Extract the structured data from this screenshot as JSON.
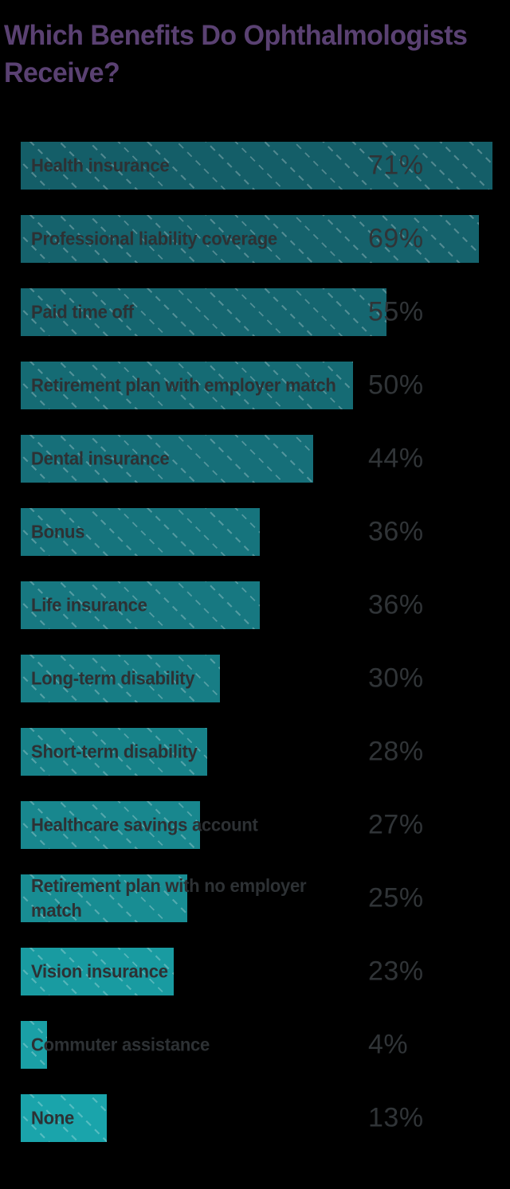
{
  "header": {
    "title_display": "Which Benefits Do Ophthalmologists\nReceive?"
  },
  "colors": {
    "background": "#000000",
    "title": "#5a4172",
    "label_text": "#2d3134",
    "value_text": "#303437",
    "pattern_line": "rgba(255,255,255,0.26)"
  },
  "chart_data": {
    "type": "bar",
    "orientation": "horizontal",
    "title": "Which Benefits Do Ophthalmologists Receive?",
    "xlabel": "",
    "ylabel": "",
    "xlim": [
      0,
      74
    ],
    "grid": false,
    "legend": false,
    "value_suffix": "%",
    "categories": [
      "Health insurance",
      "Professional liability coverage",
      "Paid time off",
      "Retirement plan with employer match",
      "Dental insurance",
      "Bonus",
      "Life insurance",
      "Long-term disability",
      "Short-term disability",
      "Healthcare savings account",
      "Retirement plan with no employer\nmatch",
      "Vision insurance",
      "Commuter assistance",
      "None"
    ],
    "values": [
      71,
      69,
      55,
      50,
      44,
      36,
      36,
      30,
      28,
      27,
      25,
      23,
      4,
      13
    ],
    "value_labels": [
      "71%",
      "69%",
      "55%",
      "50%",
      "44%",
      "36%",
      "36%",
      "30%",
      "28%",
      "27%",
      "25%",
      "23%",
      "4%",
      "13%"
    ],
    "bar_colors": [
      "#145e68",
      "#15626c",
      "#156670",
      "#156b74",
      "#166f79",
      "#16747d",
      "#177881",
      "#177d85",
      "#178289",
      "#18878e",
      "#188d93",
      "#199ba1",
      "#1aa0a6",
      "#1aa4ab"
    ]
  }
}
